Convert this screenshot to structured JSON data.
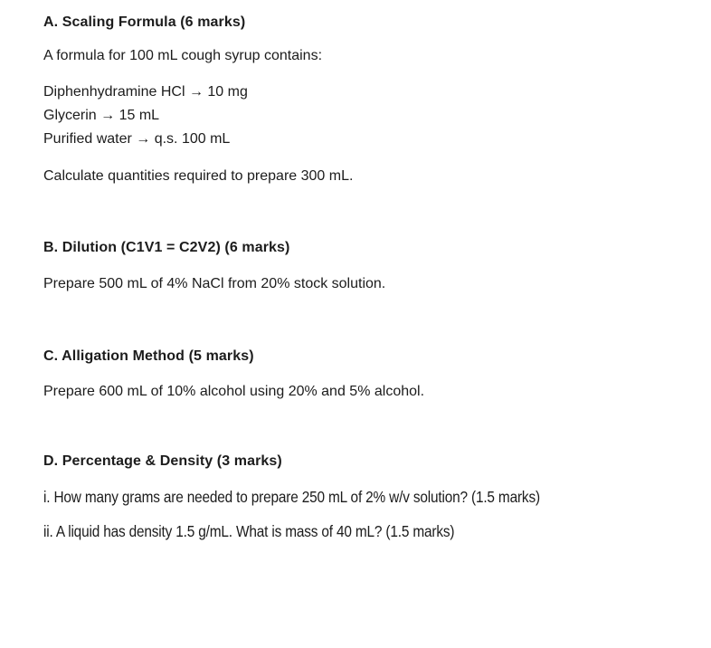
{
  "page": {
    "background_color": "#ffffff",
    "text_color": "#1c1c1c"
  },
  "sections": {
    "a": {
      "heading": "A. Scaling Formula (6 marks)",
      "intro": "A formula for 100 mL cough syrup contains:",
      "formula_lines": [
        "Diphenhydramine HCl → 10 mg",
        "Glycerin → 15 mL",
        "Purified water → q.s. 100 mL"
      ],
      "task": "Calculate quantities required to prepare 300 mL."
    },
    "b": {
      "heading": "B. Dilution (C1V1 = C2V2) (6 marks)",
      "task": "Prepare 500 mL of 4% NaCl from 20% stock solution."
    },
    "c": {
      "heading": "C. Alligation Method (5 marks)",
      "task": "Prepare 600 mL of 10% alcohol using 20% and 5% alcohol."
    },
    "d": {
      "heading": "D. Percentage & Density (3 marks)",
      "items": [
        "i. How many grams are needed to prepare 250 mL of 2% w/v solution? (1.5 marks)",
        "ii. A liquid has density 1.5 g/mL. What is mass of 40 mL? (1.5 marks)"
      ]
    }
  }
}
